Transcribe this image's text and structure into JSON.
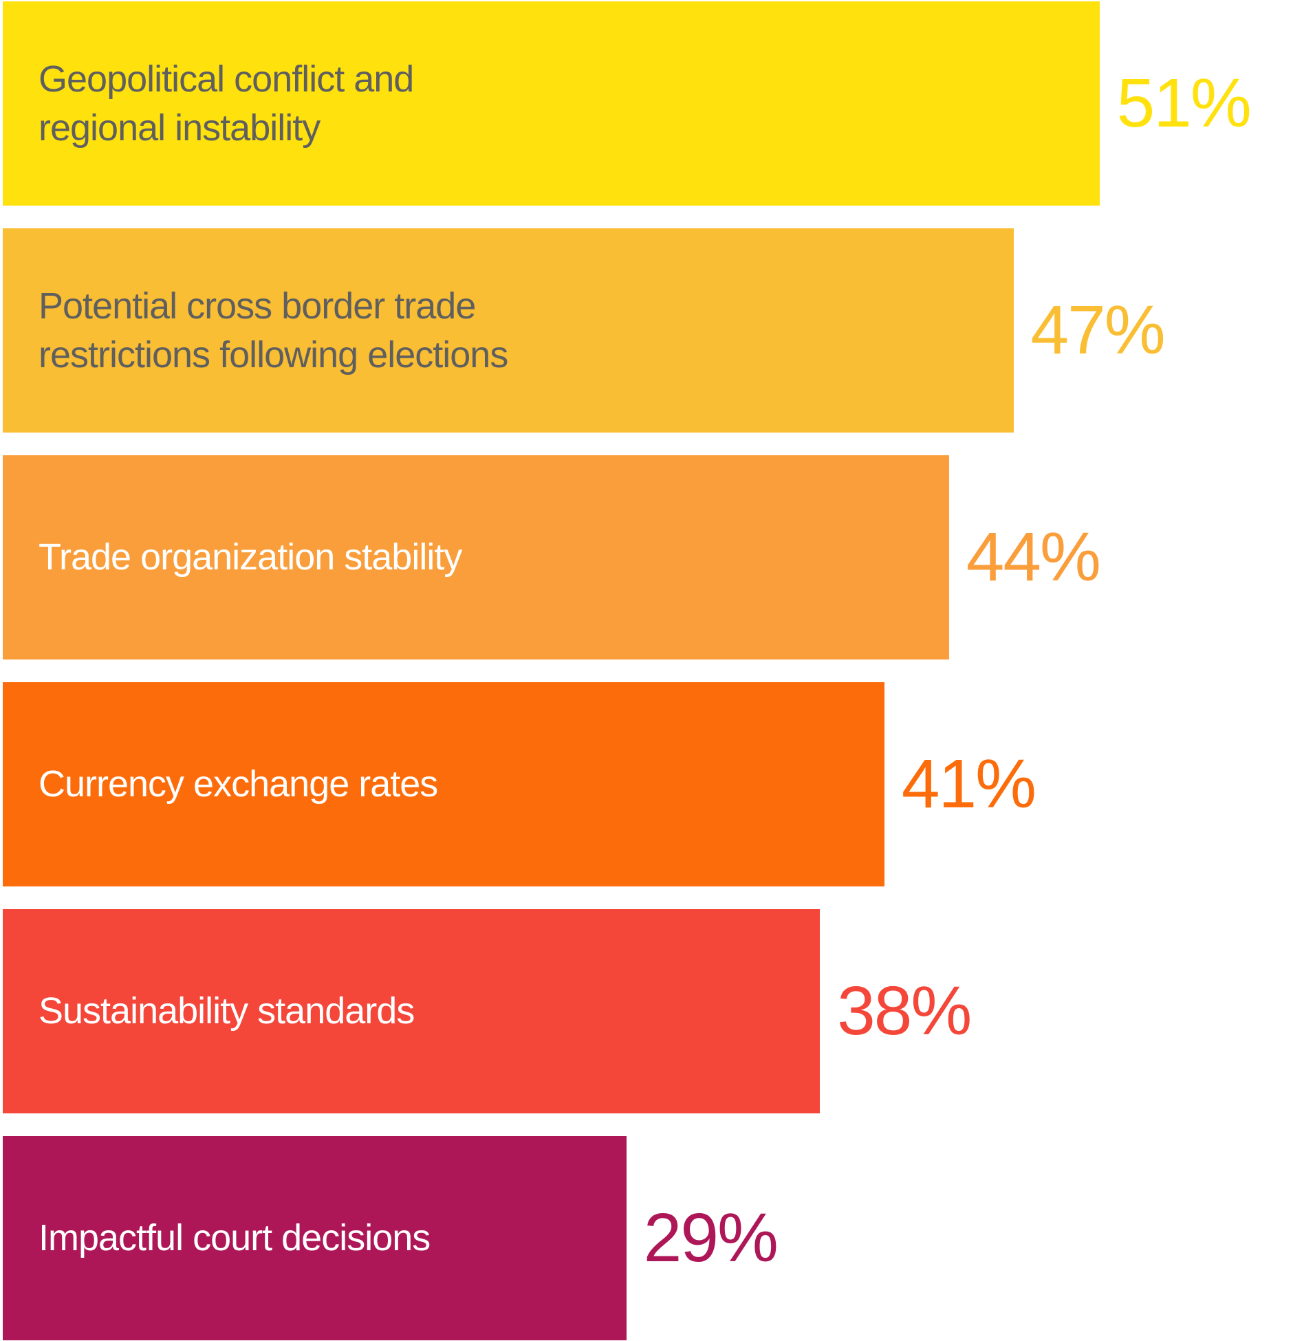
{
  "chart_data": {
    "type": "bar",
    "orientation": "horizontal",
    "title": "",
    "xlabel": "",
    "ylabel": "",
    "xlim": [
      0,
      60
    ],
    "grid": false,
    "legend": "none",
    "background": "#FFFFFF",
    "categories": [
      "Geopolitical conflict and\nregional instability",
      "Potential cross border trade\nrestrictions following elections",
      "Trade organization stability",
      "Currency exchange rates",
      "Sustainability standards",
      "Impactful court decisions"
    ],
    "values": [
      51,
      47,
      44,
      41,
      38,
      29
    ],
    "value_labels": [
      "51%",
      "47%",
      "44%",
      "41%",
      "38%",
      "29%"
    ],
    "bar_colors": [
      "#FFE10D",
      "#F9BE33",
      "#FA9E3C",
      "#FD6C0A",
      "#F4473A",
      "#AE1757"
    ],
    "label_text_colors": [
      "#5F5F5F",
      "#5F5F5F",
      "#FFFFFF",
      "#FFFFFF",
      "#FFFFFF",
      "#FFFFFF"
    ]
  }
}
